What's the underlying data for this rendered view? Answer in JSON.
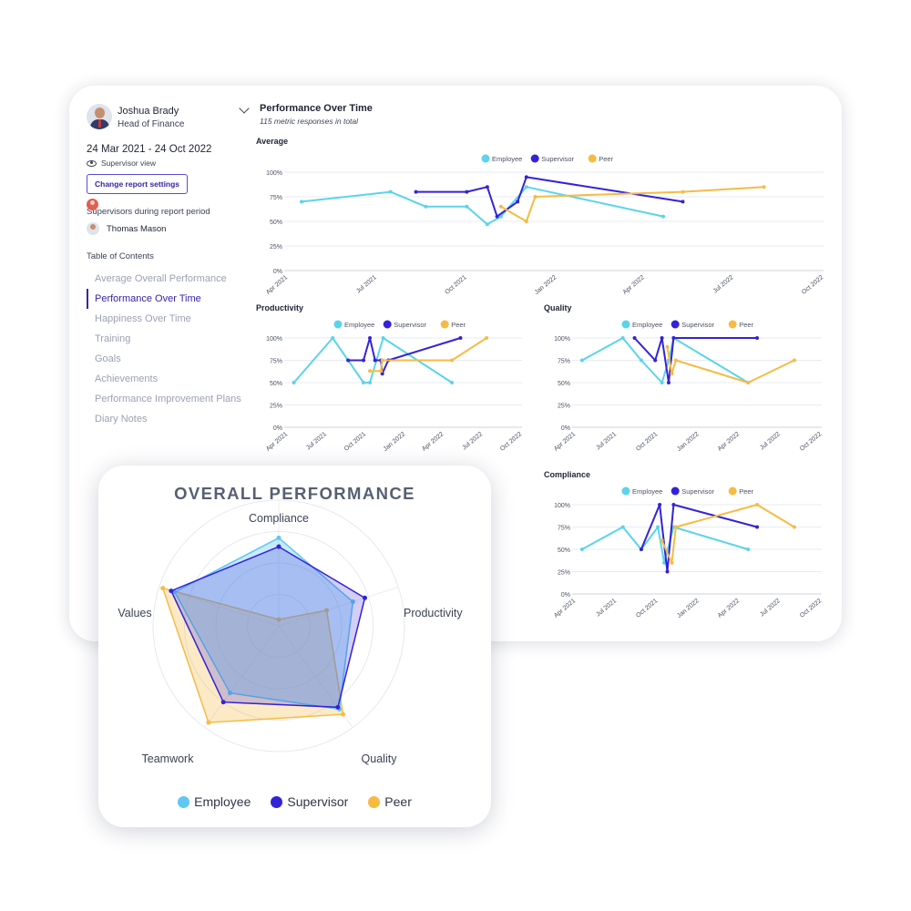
{
  "report": {
    "profile": {
      "name": "Joshua Brady",
      "role": "Head of Finance"
    },
    "date_range": "24 Mar 2021 - 24 Oct 2022",
    "view_label": "Supervisor view",
    "settings_button": "Change report settings",
    "supervisors_label": "Supervisors during report period",
    "supervisor_name": "Thomas Mason",
    "toc_title": "Table of Contents",
    "toc": [
      "Average Overall Performance",
      "Performance Over Time",
      "Happiness Over Time",
      "Training",
      "Goals",
      "Achievements",
      "Performance Improvement Plans",
      "Diary Notes"
    ],
    "toc_active_index": 1,
    "section_title": "Performance Over Time",
    "section_subtitle": "115 metric responses in total"
  },
  "colors": {
    "employee": "#5ad4ea",
    "supervisor": "#3422d8",
    "peer": "#f6bb42",
    "grid": "#e6e8ee",
    "axis_text": "#4b5262",
    "accent": "#3524a8"
  },
  "chart_data": [
    {
      "type": "line",
      "title": "Average",
      "x_ticks": [
        "Apr 2021",
        "Jul 2021",
        "Oct 2021",
        "Jan 2022",
        "Apr 2022",
        "Jul 2022",
        "Oct 2022"
      ],
      "xlim": [
        "2021-04-01",
        "2022-10-01"
      ],
      "y_ticks": [
        "0%",
        "25%",
        "50%",
        "75%",
        "100%"
      ],
      "ylim": [
        0,
        100
      ],
      "legend": [
        "Employee",
        "Supervisor",
        "Peer"
      ],
      "series": [
        {
          "name": "Employee",
          "color": "#5ad4ea",
          "points": [
            [
              "2021-04-15",
              70
            ],
            [
              "2021-07-15",
              80
            ],
            [
              "2021-08-20",
              65
            ],
            [
              "2021-10-01",
              65
            ],
            [
              "2021-10-22",
              47
            ],
            [
              "2021-11-05",
              55
            ],
            [
              "2021-12-01",
              85
            ],
            [
              "2022-04-20",
              55
            ]
          ]
        },
        {
          "name": "Supervisor",
          "color": "#3422d8",
          "points": [
            [
              "2021-08-10",
              80
            ],
            [
              "2021-10-01",
              80
            ],
            [
              "2021-10-22",
              85
            ],
            [
              "2021-11-01",
              55
            ],
            [
              "2021-11-22",
              70
            ],
            [
              "2021-12-01",
              95
            ],
            [
              "2022-05-10",
              70
            ]
          ]
        },
        {
          "name": "Peer",
          "color": "#f6bb42",
          "points": [
            [
              "2021-11-05",
              65
            ],
            [
              "2021-12-01",
              50
            ],
            [
              "2021-12-10",
              75
            ],
            [
              "2022-05-10",
              80
            ],
            [
              "2022-08-01",
              85
            ]
          ]
        }
      ]
    },
    {
      "type": "line",
      "title": "Productivity",
      "x_ticks": [
        "Apr 2021",
        "Jul 2021",
        "Oct 2021",
        "Jan 2022",
        "Apr 2022",
        "Jul 2022",
        "Oct 2022"
      ],
      "xlim": [
        "2021-04-01",
        "2022-10-01"
      ],
      "y_ticks": [
        "0%",
        "25%",
        "50%",
        "75%",
        "100%"
      ],
      "ylim": [
        0,
        100
      ],
      "legend": [
        "Employee",
        "Supervisor",
        "Peer"
      ],
      "series": [
        {
          "name": "Employee",
          "color": "#5ad4ea",
          "points": [
            [
              "2021-04-15",
              50
            ],
            [
              "2021-07-15",
              100
            ],
            [
              "2021-09-25",
              50
            ],
            [
              "2021-10-10",
              50
            ],
            [
              "2021-11-10",
              100
            ],
            [
              "2022-04-20",
              50
            ]
          ]
        },
        {
          "name": "Supervisor",
          "color": "#3422d8",
          "points": [
            [
              "2021-08-20",
              75
            ],
            [
              "2021-09-25",
              75
            ],
            [
              "2021-10-10",
              100
            ],
            [
              "2021-10-22",
              75
            ],
            [
              "2021-11-05",
              75
            ],
            [
              "2021-11-08",
              60
            ],
            [
              "2021-11-22",
              75
            ],
            [
              "2022-05-10",
              100
            ]
          ]
        },
        {
          "name": "Peer",
          "color": "#f6bb42",
          "points": [
            [
              "2021-10-10",
              63
            ],
            [
              "2021-11-05",
              63
            ],
            [
              "2021-11-08",
              75
            ],
            [
              "2022-04-20",
              75
            ],
            [
              "2022-07-10",
              100
            ]
          ]
        }
      ]
    },
    {
      "type": "line",
      "title": "Quality",
      "x_ticks": [
        "Apr 2021",
        "Jul 2021",
        "Oct 2021",
        "Jan 2022",
        "Apr 2022",
        "Jul 2022",
        "Oct 2022"
      ],
      "xlim": [
        "2021-04-01",
        "2022-10-01"
      ],
      "y_ticks": [
        "0%",
        "25%",
        "50%",
        "75%",
        "100%"
      ],
      "ylim": [
        0,
        100
      ],
      "legend": [
        "Employee",
        "Supervisor",
        "Peer"
      ],
      "series": [
        {
          "name": "Employee",
          "color": "#5ad4ea",
          "points": [
            [
              "2021-04-15",
              75
            ],
            [
              "2021-07-15",
              100
            ],
            [
              "2021-08-25",
              75
            ],
            [
              "2021-10-10",
              50
            ],
            [
              "2021-10-25",
              75
            ],
            [
              "2021-11-05",
              100
            ],
            [
              "2022-04-20",
              50
            ]
          ]
        },
        {
          "name": "Supervisor",
          "color": "#3422d8",
          "points": [
            [
              "2021-08-10",
              100
            ],
            [
              "2021-09-25",
              75
            ],
            [
              "2021-10-10",
              100
            ],
            [
              "2021-10-25",
              50
            ],
            [
              "2021-11-05",
              100
            ],
            [
              "2022-05-10",
              100
            ]
          ]
        },
        {
          "name": "Peer",
          "color": "#f6bb42",
          "points": [
            [
              "2021-10-22",
              90
            ],
            [
              "2021-11-01",
              60
            ],
            [
              "2021-11-10",
              75
            ],
            [
              "2022-04-20",
              50
            ],
            [
              "2022-08-01",
              75
            ]
          ]
        }
      ]
    },
    {
      "type": "line",
      "title": "Compliance",
      "x_ticks": [
        "Apr 2021",
        "Jul 2021",
        "Oct 2021",
        "Jan 2022",
        "Apr 2022",
        "Jul 2022",
        "Oct 2022"
      ],
      "xlim": [
        "2021-04-01",
        "2022-10-01"
      ],
      "y_ticks": [
        "0%",
        "25%",
        "50%",
        "75%",
        "100%"
      ],
      "ylim": [
        0,
        100
      ],
      "legend": [
        "Employee",
        "Supervisor",
        "Peer"
      ],
      "series": [
        {
          "name": "Employee",
          "color": "#5ad4ea",
          "points": [
            [
              "2021-04-15",
              50
            ],
            [
              "2021-07-15",
              75
            ],
            [
              "2021-08-25",
              50
            ],
            [
              "2021-10-01",
              75
            ],
            [
              "2021-10-15",
              35
            ],
            [
              "2021-11-05",
              75
            ],
            [
              "2022-04-20",
              50
            ]
          ]
        },
        {
          "name": "Supervisor",
          "color": "#3422d8",
          "points": [
            [
              "2021-08-25",
              50
            ],
            [
              "2021-10-05",
              100
            ],
            [
              "2021-10-22",
              25
            ],
            [
              "2021-11-05",
              100
            ],
            [
              "2022-05-10",
              75
            ]
          ]
        },
        {
          "name": "Peer",
          "color": "#f6bb42",
          "points": [
            [
              "2021-10-10",
              60
            ],
            [
              "2021-11-01",
              35
            ],
            [
              "2021-11-10",
              75
            ],
            [
              "2022-05-10",
              100
            ],
            [
              "2022-08-01",
              75
            ]
          ]
        }
      ]
    },
    {
      "type": "radar",
      "title": "OVERALL PERFORMANCE",
      "axes": [
        "Compliance",
        "Productivity",
        "Quality",
        "Teamwork",
        "Values"
      ],
      "max": 100,
      "legend": [
        "Employee",
        "Supervisor",
        "Peer"
      ],
      "series": [
        {
          "name": "Employee",
          "color": "#5fc7f2",
          "values": [
            70,
            62,
            82,
            66,
            87
          ]
        },
        {
          "name": "Supervisor",
          "color": "#3422d8",
          "values": [
            63,
            72,
            80,
            75,
            90
          ]
        },
        {
          "name": "Peer",
          "color": "#f6bb42",
          "values": [
            5,
            40,
            87,
            95,
            97
          ]
        }
      ]
    }
  ]
}
